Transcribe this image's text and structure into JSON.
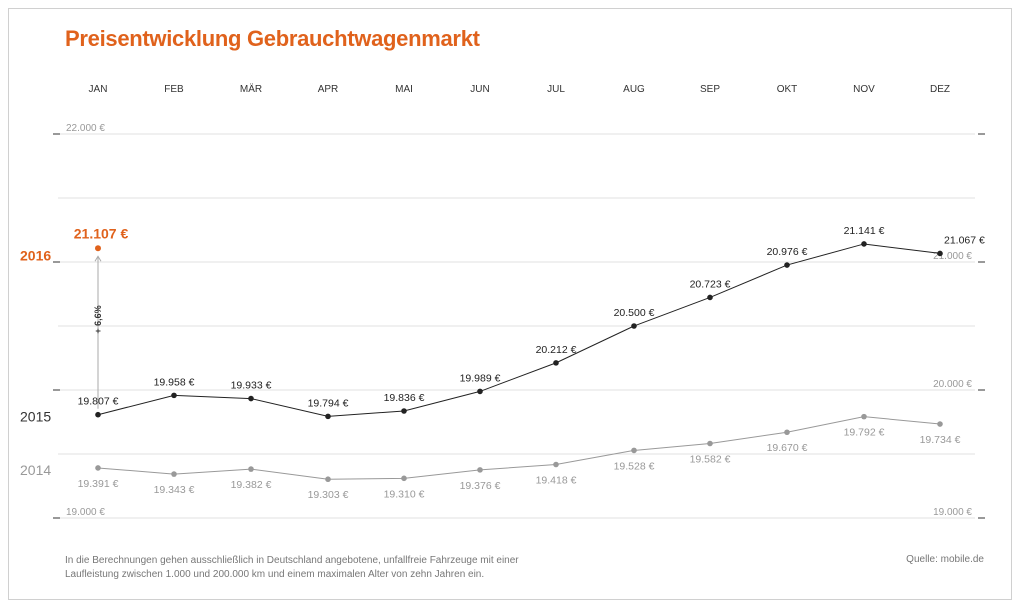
{
  "title": "Preisentwicklung Gebrauchtwagenmarkt",
  "footnote": "In die Berechnungen gehen ausschließlich in Deutschland angebotene, unfallfreie Fahrzeuge mit einer Laufleistung zwischen 1.000 und 200.000 km und einem maximalen Alter von zehn Jahren ein.",
  "source": "Quelle: mobile.de",
  "colors": {
    "accent": "#e0621c",
    "series_2015": "#222222",
    "series_2014": "#999999",
    "grid": "#e2e2e2"
  },
  "chart_data": {
    "type": "line",
    "title": "Preisentwicklung Gebrauchtwagenmarkt",
    "categories": [
      "JAN",
      "FEB",
      "MÄR",
      "APR",
      "MAI",
      "JUN",
      "JUL",
      "AUG",
      "SEP",
      "OKT",
      "NOV",
      "DEZ"
    ],
    "ylim": [
      19000,
      22000
    ],
    "y_ticks": [
      {
        "value": 22000,
        "label": "22.000 €"
      },
      {
        "value": 21000,
        "label": "21.000 €"
      },
      {
        "value": 20000,
        "label": "20.000 €"
      },
      {
        "value": 19000,
        "label": "19.000 €"
      }
    ],
    "grid": true,
    "series": [
      {
        "name": "2015",
        "values": [
          19807,
          19958,
          19933,
          19794,
          19836,
          19989,
          20212,
          20500,
          20723,
          20976,
          21141,
          21067
        ],
        "labels": [
          "19.807 €",
          "19.958 €",
          "19.933 €",
          "19.794 €",
          "19.836 €",
          "19.989 €",
          "20.212 €",
          "20.500 €",
          "20.723 €",
          "20.976 €",
          "21.141 €",
          "21.067 €"
        ]
      },
      {
        "name": "2014",
        "values": [
          19391,
          19343,
          19382,
          19303,
          19310,
          19376,
          19418,
          19528,
          19582,
          19670,
          19792,
          19734
        ],
        "labels": [
          "19.391 €",
          "19.343 €",
          "19.382 €",
          "19.303 €",
          "19.310 €",
          "19.376 €",
          "19.418 €",
          "19.528 €",
          "19.582 €",
          "19.670 €",
          "19.792 €",
          "19.734 €"
        ]
      },
      {
        "name": "2016",
        "x": [
          "JAN"
        ],
        "values": [
          21107
        ],
        "labels": [
          "21.107 €"
        ]
      }
    ],
    "annotations": [
      {
        "text": "+ 6,6%",
        "from": {
          "series": "2015",
          "x": "JAN"
        },
        "to": {
          "series": "2016",
          "x": "JAN"
        }
      }
    ]
  }
}
